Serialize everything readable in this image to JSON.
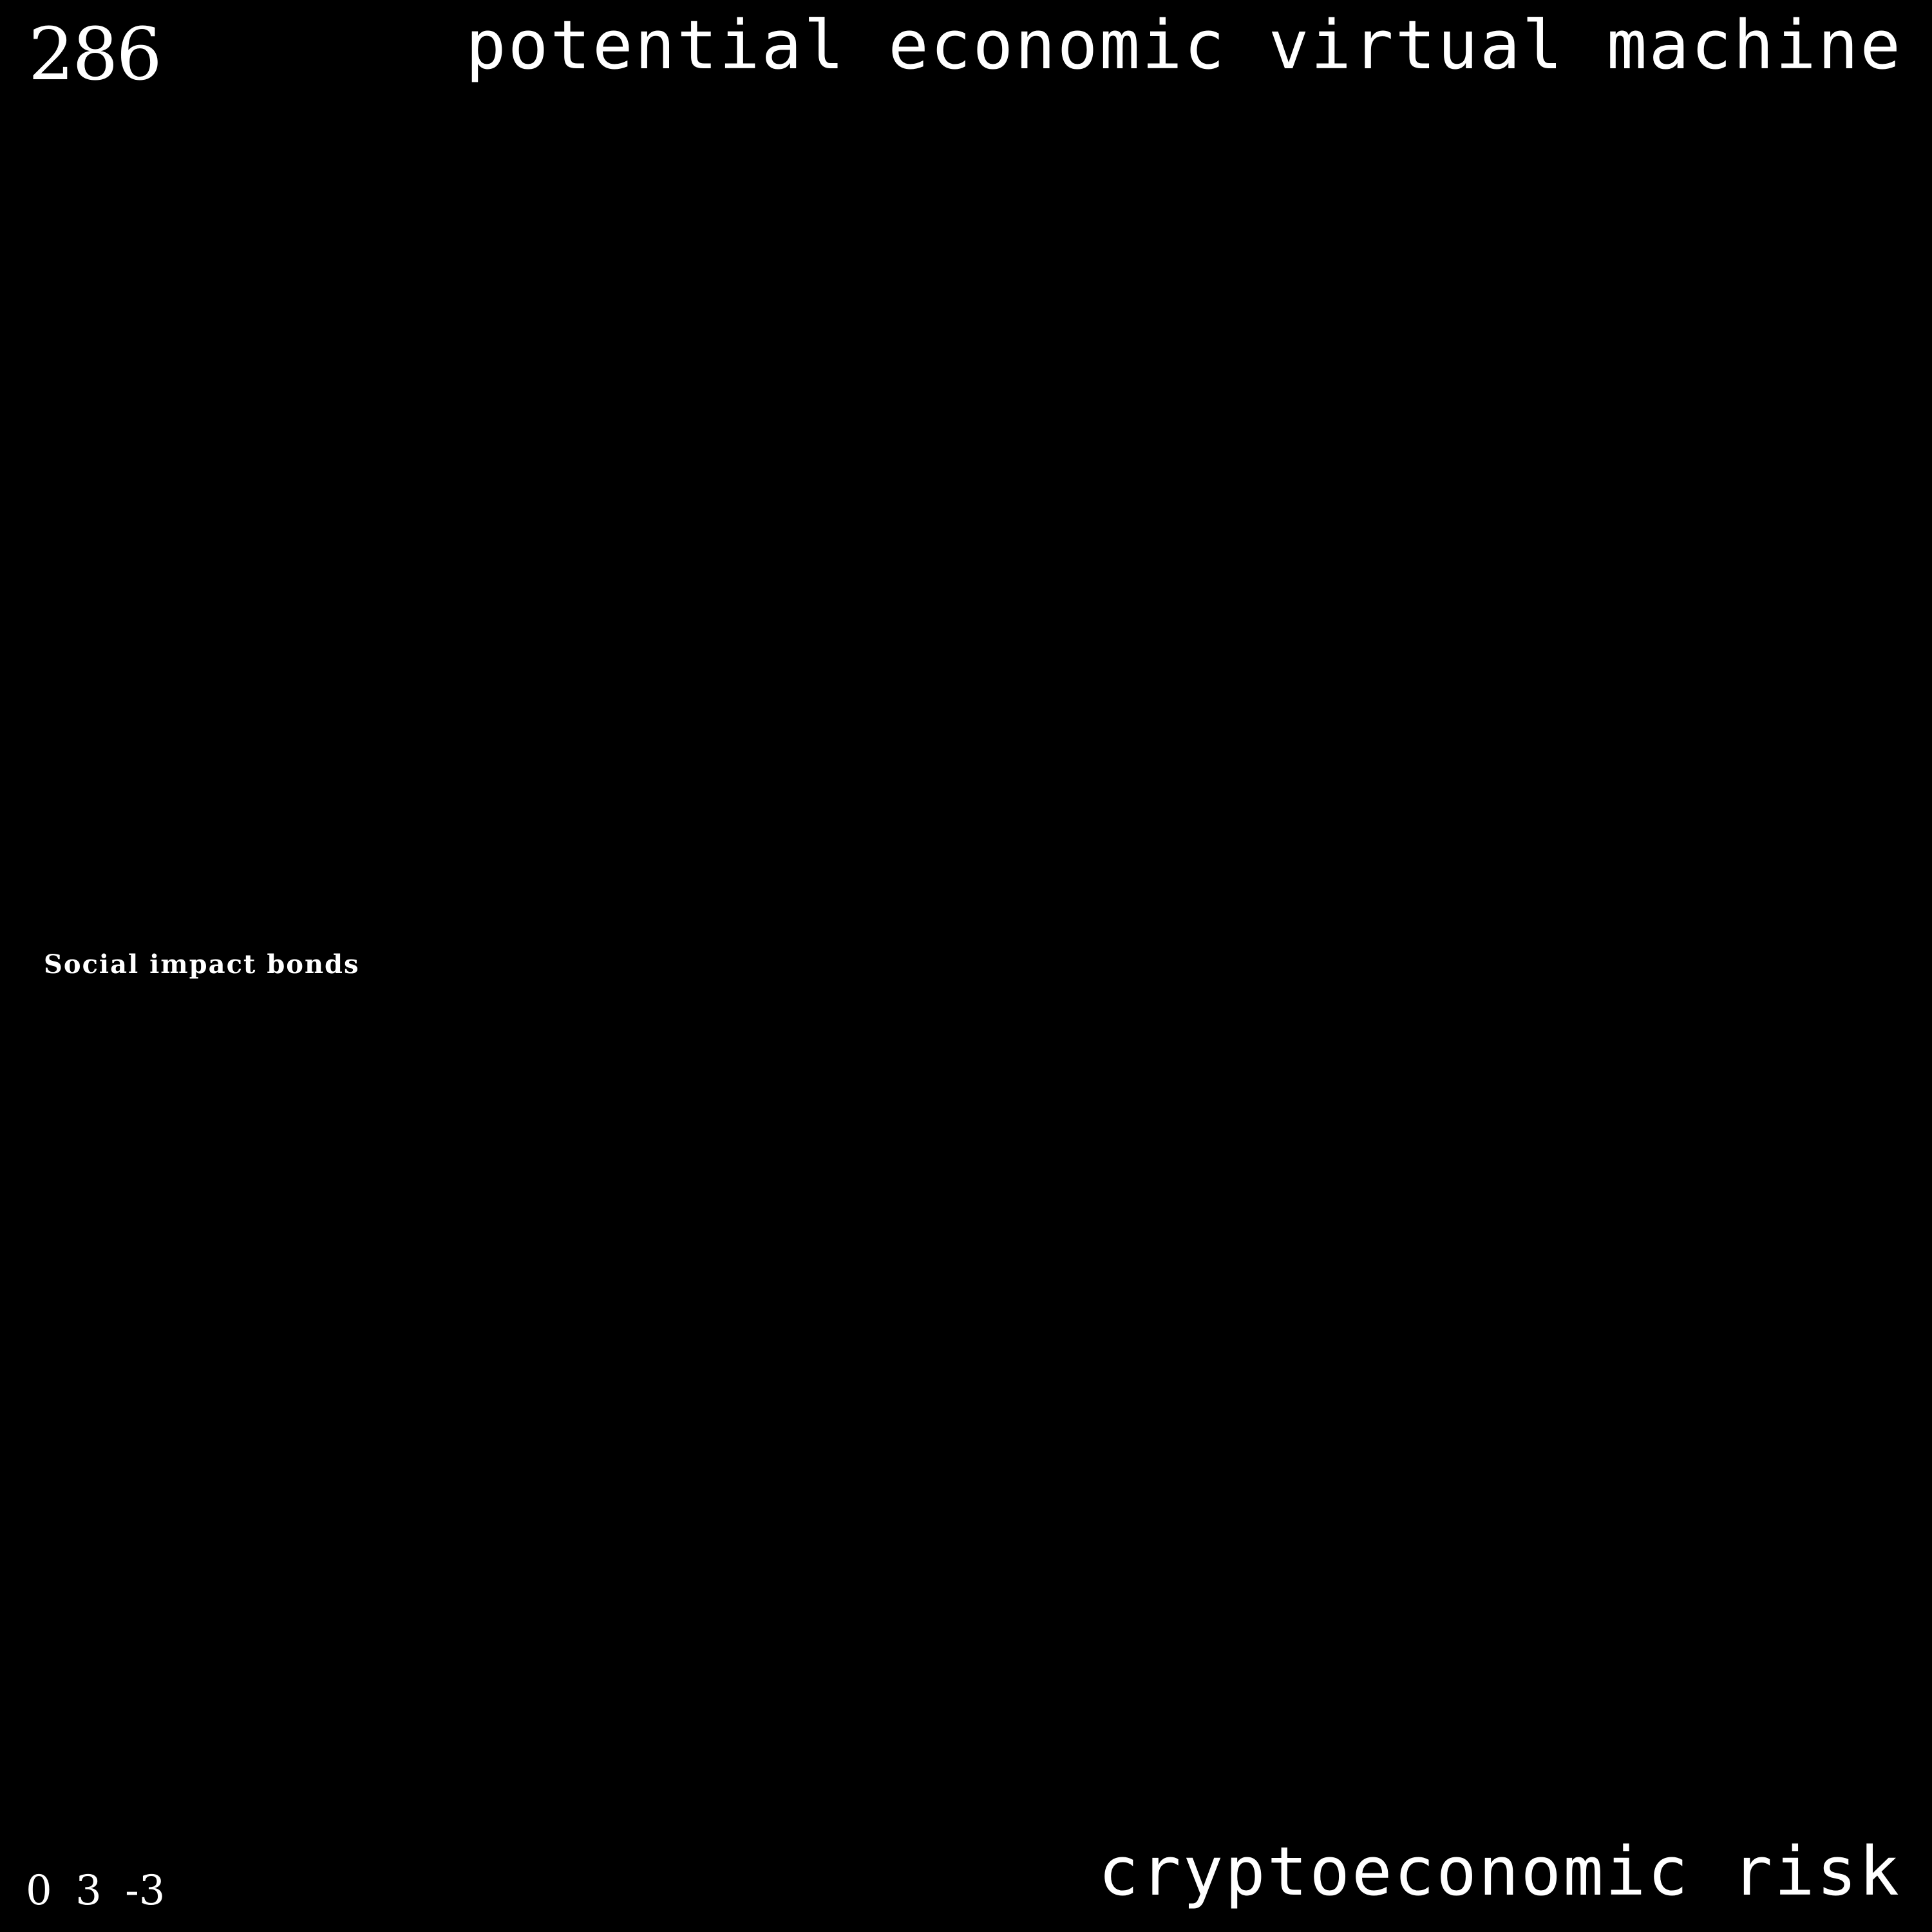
{
  "card": {
    "number": "286",
    "title": "potential economic virtual machine",
    "item": "Social impact bonds",
    "values": "0 3 -3",
    "category": "cryptoeconomic risk"
  },
  "colors": {
    "background": "#000000",
    "text": "#ffffff"
  }
}
